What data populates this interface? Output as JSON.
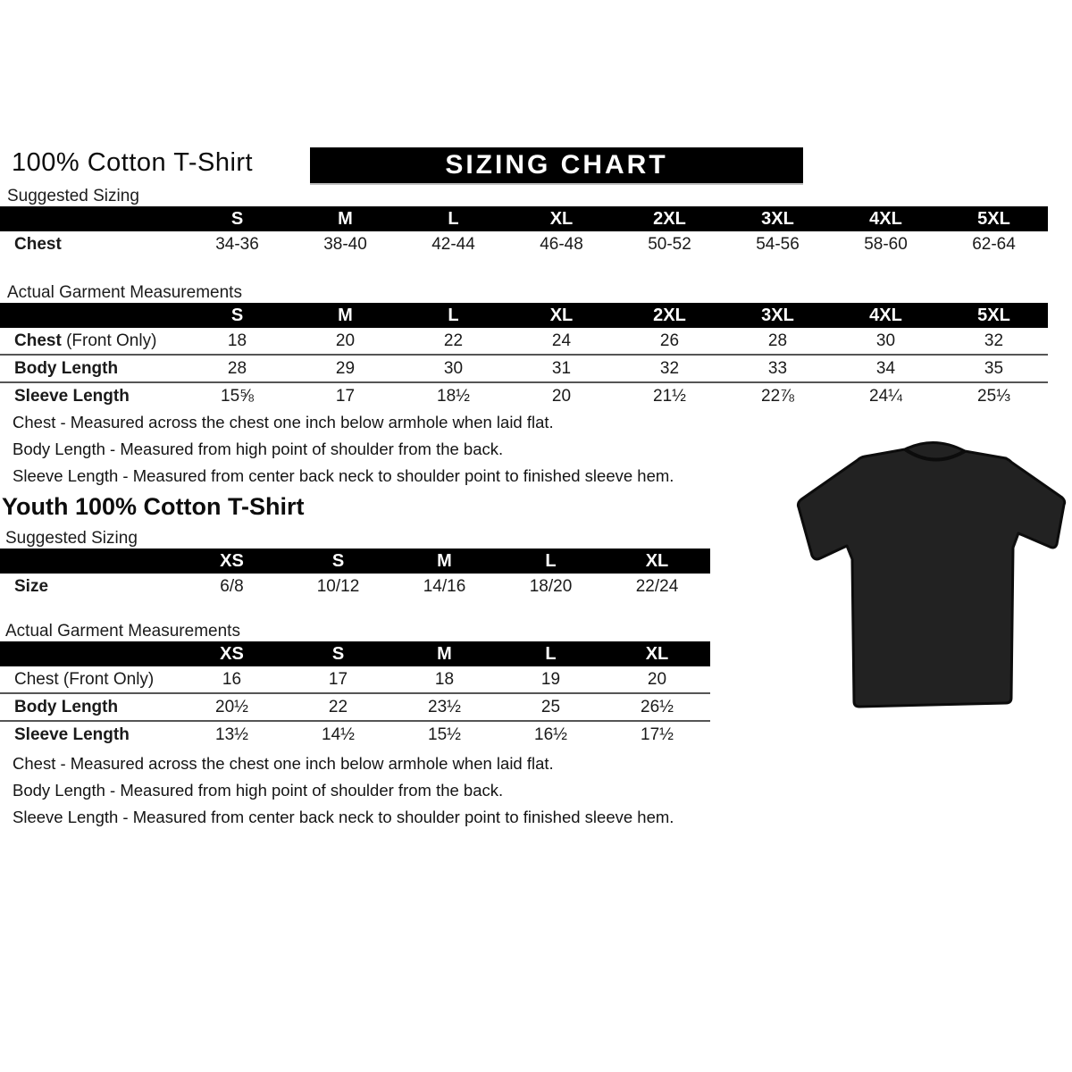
{
  "header": {
    "title": "100% Cotton T-Shirt",
    "banner": "SIZING CHART"
  },
  "adult_suggested": {
    "section_label": "Suggested Sizing",
    "columns": [
      "S",
      "M",
      "L",
      "XL",
      "2XL",
      "3XL",
      "4XL",
      "5XL"
    ],
    "rows": [
      {
        "parts": [
          {
            "t": "Chest",
            "b": true
          }
        ],
        "values": [
          "34-36",
          "38-40",
          "42-44",
          "46-48",
          "50-52",
          "54-56",
          "58-60",
          "62-64"
        ]
      }
    ]
  },
  "adult_actual": {
    "section_label": "Actual Garment Measurements",
    "columns": [
      "S",
      "M",
      "L",
      "XL",
      "2XL",
      "3XL",
      "4XL",
      "5XL"
    ],
    "rows": [
      {
        "parts": [
          {
            "t": "Chest",
            "b": true
          },
          {
            "t": " (Front Only)",
            "b": false
          }
        ],
        "values": [
          "18",
          "20",
          "22",
          "24",
          "26",
          "28",
          "30",
          "32"
        ]
      },
      {
        "parts": [
          {
            "t": "Body Length",
            "b": true
          }
        ],
        "values": [
          "28",
          "29",
          "30",
          "31",
          "32",
          "33",
          "34",
          "35"
        ]
      },
      {
        "parts": [
          {
            "t": "Sleeve Length",
            "b": true
          }
        ],
        "values": [
          "15⅝",
          "17",
          "18½",
          "20",
          "21½",
          "22⅞",
          "24¼",
          "25⅓"
        ]
      }
    ]
  },
  "adult_notes": [
    "Chest - Measured across the chest one inch below armhole when laid flat.",
    "Body Length - Measured from high point of shoulder from the back.",
    "Sleeve Length - Measured from center back neck to shoulder point to finished sleeve hem."
  ],
  "youth_header": {
    "title": "Youth 100% Cotton T-Shirt"
  },
  "youth_suggested": {
    "section_label": "Suggested Sizing",
    "columns": [
      "XS",
      "S",
      "M",
      "L",
      "XL"
    ],
    "rows": [
      {
        "parts": [
          {
            "t": "Size",
            "b": true
          }
        ],
        "values": [
          "6/8",
          "10/12",
          "14/16",
          "18/20",
          "22/24"
        ]
      }
    ]
  },
  "youth_actual": {
    "section_label": "Actual Garment Measurements",
    "columns": [
      "XS",
      "S",
      "M",
      "L",
      "XL"
    ],
    "rows": [
      {
        "parts": [
          {
            "t": "Chest (Front Only)",
            "b": false
          }
        ],
        "values": [
          "16",
          "17",
          "18",
          "19",
          "20"
        ]
      },
      {
        "parts": [
          {
            "t": "Body Length",
            "b": true
          }
        ],
        "values": [
          "20½",
          "22",
          "23½",
          "25",
          "26½"
        ]
      },
      {
        "parts": [
          {
            "t": "Sleeve Length",
            "b": true
          }
        ],
        "values": [
          "13½",
          "14½",
          "15½",
          "16½",
          "17½"
        ]
      }
    ]
  },
  "youth_notes": [
    "Chest - Measured across the chest one inch below armhole when laid flat.",
    "Body Length - Measured from high point of shoulder from the back.",
    "Sleeve Length - Measured from center back neck to shoulder point to finished sleeve hem."
  ],
  "tshirt": {
    "name": "black-tshirt-photo",
    "fill_color": "#222222",
    "outline_color": "#0c0c0c"
  },
  "colors": {
    "bar_background": "#000000",
    "bar_text": "#ffffff",
    "row_separator": "#555555"
  }
}
